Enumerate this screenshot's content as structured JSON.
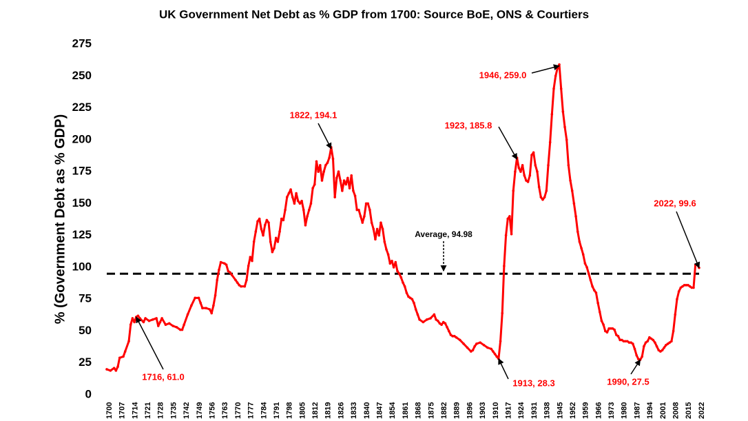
{
  "chart_data": {
    "type": "line",
    "title": "UK Government  Net Debt as % GDP from 1700: Source BoE, ONS & Courtiers",
    "y_label": "% (Government Debt as % GDP)",
    "color": "#ff0000",
    "x": [
      1700,
      1702,
      1704,
      1705,
      1706,
      1707,
      1709,
      1710,
      1712,
      1713,
      1714,
      1715,
      1716,
      1717,
      1718,
      1720,
      1721,
      1723,
      1725,
      1727,
      1728,
      1729,
      1730,
      1732,
      1734,
      1736,
      1738,
      1740,
      1741,
      1742,
      1744,
      1746,
      1748,
      1750,
      1751,
      1752,
      1754,
      1756,
      1757,
      1758,
      1759,
      1760,
      1761,
      1762,
      1764,
      1765,
      1766,
      1767,
      1768,
      1770,
      1771,
      1772,
      1773,
      1775,
      1776,
      1777,
      1778,
      1779,
      1780,
      1781,
      1782,
      1783,
      1784,
      1785,
      1786,
      1787,
      1788,
      1789,
      1790,
      1791,
      1792,
      1793,
      1794,
      1795,
      1796,
      1797,
      1798,
      1799,
      1800,
      1801,
      1802,
      1803,
      1804,
      1805,
      1806,
      1807,
      1808,
      1809,
      1810,
      1811,
      1812,
      1813,
      1814,
      1815,
      1816,
      1817,
      1818,
      1819,
      1820,
      1821,
      1822,
      1823,
      1824,
      1825,
      1826,
      1827,
      1828,
      1829,
      1830,
      1831,
      1832,
      1833,
      1834,
      1835,
      1836,
      1837,
      1838,
      1839,
      1840,
      1841,
      1842,
      1843,
      1844,
      1845,
      1846,
      1847,
      1848,
      1849,
      1850,
      1851,
      1852,
      1853,
      1854,
      1855,
      1856,
      1857,
      1858,
      1859,
      1860,
      1861,
      1862,
      1863,
      1864,
      1865,
      1866,
      1867,
      1868,
      1869,
      1870,
      1872,
      1874,
      1876,
      1878,
      1879,
      1880,
      1881,
      1882,
      1883,
      1884,
      1885,
      1886,
      1887,
      1888,
      1889,
      1890,
      1892,
      1894,
      1896,
      1898,
      1899,
      1900,
      1901,
      1903,
      1905,
      1907,
      1909,
      1910,
      1911,
      1912,
      1913,
      1914,
      1915,
      1916,
      1917,
      1918,
      1919,
      1920,
      1921,
      1922,
      1923,
      1924,
      1925,
      1926,
      1927,
      1928,
      1929,
      1930,
      1931,
      1932,
      1933,
      1934,
      1935,
      1936,
      1937,
      1938,
      1939,
      1940,
      1941,
      1942,
      1943,
      1944,
      1945,
      1946,
      1947,
      1948,
      1949,
      1950,
      1951,
      1952,
      1953,
      1954,
      1955,
      1956,
      1957,
      1958,
      1959,
      1960,
      1961,
      1962,
      1963,
      1964,
      1965,
      1966,
      1967,
      1968,
      1969,
      1970,
      1971,
      1972,
      1973,
      1974,
      1975,
      1976,
      1977,
      1978,
      1979,
      1980,
      1981,
      1982,
      1983,
      1984,
      1985,
      1986,
      1987,
      1988,
      1989,
      1990,
      1991,
      1992,
      1993,
      1994,
      1995,
      1996,
      1997,
      1998,
      1999,
      2000,
      2001,
      2002,
      2003,
      2004,
      2005,
      2006,
      2007,
      2008,
      2009,
      2010,
      2011,
      2012,
      2013,
      2014,
      2015,
      2016,
      2017,
      2018,
      2019,
      2020,
      2021,
      2022
    ],
    "values": [
      20,
      19,
      21,
      19,
      22,
      29,
      30,
      34,
      42,
      55,
      60,
      57,
      61.0,
      62,
      60,
      57,
      60,
      58,
      59,
      60,
      54,
      57,
      60,
      55,
      56,
      54,
      53,
      51,
      51,
      55,
      63,
      70,
      76,
      76,
      72,
      68,
      68,
      67,
      64,
      70,
      78,
      90,
      98,
      104,
      103,
      102,
      97,
      96,
      94,
      90,
      88,
      86,
      85,
      85,
      90,
      101,
      108,
      105,
      120,
      128,
      136,
      138,
      130,
      125,
      133,
      137,
      135,
      120,
      112,
      115,
      123,
      120,
      128,
      138,
      137,
      145,
      155,
      158,
      161,
      155,
      150,
      158,
      152,
      150,
      152,
      145,
      133,
      140,
      145,
      150,
      162,
      165,
      183,
      175,
      180,
      168,
      175,
      180,
      182,
      186,
      194.1,
      185,
      155,
      170,
      175,
      168,
      160,
      168,
      165,
      170,
      162,
      172,
      160,
      156,
      145,
      145,
      140,
      135,
      140,
      150,
      150,
      145,
      135,
      130,
      122,
      130,
      125,
      135,
      130,
      120,
      114,
      110,
      103,
      105,
      100,
      104,
      97,
      95,
      92,
      88,
      85,
      80,
      77,
      76,
      75,
      72,
      67,
      63,
      59,
      57,
      59,
      60,
      63,
      59,
      58,
      56,
      55,
      57,
      56,
      53,
      50,
      47,
      46,
      46,
      45,
      43,
      40,
      37,
      34,
      35,
      38,
      40,
      41,
      39,
      37,
      36,
      34,
      32,
      30,
      28.3,
      42,
      64,
      101,
      125,
      138,
      140,
      126,
      160,
      175,
      185.8,
      178,
      175,
      180,
      172,
      168,
      167,
      172,
      188,
      190,
      180,
      175,
      163,
      155,
      153,
      155,
      160,
      180,
      198,
      220,
      240,
      250,
      256,
      259.0,
      240,
      222,
      210,
      200,
      180,
      168,
      160,
      150,
      140,
      128,
      120,
      115,
      110,
      103,
      100,
      95,
      90,
      85,
      82,
      80,
      72,
      65,
      58,
      55,
      50,
      49,
      52,
      52,
      52,
      51,
      47,
      46,
      43,
      43,
      42,
      42,
      42,
      41,
      41,
      40,
      36,
      31,
      28,
      27.5,
      30,
      38,
      41,
      42,
      45,
      44,
      43,
      41,
      38,
      35,
      34,
      35,
      37,
      39,
      40,
      41,
      42,
      50,
      63,
      75,
      81,
      84,
      85,
      86,
      86,
      86,
      85,
      84,
      84,
      102,
      102,
      99.6
    ],
    "xlim": [
      1700,
      2022
    ],
    "xticks": [
      1700,
      1707,
      1714,
      1721,
      1728,
      1735,
      1742,
      1749,
      1756,
      1763,
      1770,
      1777,
      1784,
      1791,
      1798,
      1805,
      1812,
      1819,
      1826,
      1833,
      1840,
      1847,
      1854,
      1861,
      1868,
      1875,
      1882,
      1889,
      1896,
      1903,
      1910,
      1917,
      1924,
      1931,
      1938,
      1945,
      1952,
      1959,
      1966,
      1973,
      1980,
      1987,
      1994,
      2001,
      2008,
      2015,
      2022
    ],
    "ylim": [
      0,
      275
    ],
    "yticks": [
      0,
      25,
      50,
      75,
      100,
      125,
      150,
      175,
      200,
      225,
      250,
      275
    ],
    "average": 94.98,
    "annotations": [
      {
        "label": "1716, 61.0",
        "x": 1716,
        "y": 61.0
      },
      {
        "label": "1822, 194.1",
        "x": 1822,
        "y": 194.1
      },
      {
        "label": "1923, 185.8",
        "x": 1923,
        "y": 185.8
      },
      {
        "label": "1946, 259.0",
        "x": 1946,
        "y": 259.0
      },
      {
        "label": "1913, 28.3",
        "x": 1913,
        "y": 28.3
      },
      {
        "label": "1990, 27.5",
        "x": 1990,
        "y": 27.5
      },
      {
        "label": "2022, 99.6",
        "x": 2022,
        "y": 99.6
      },
      {
        "label": "Average, 94.98",
        "x": 1882,
        "y": 94.98
      }
    ]
  }
}
